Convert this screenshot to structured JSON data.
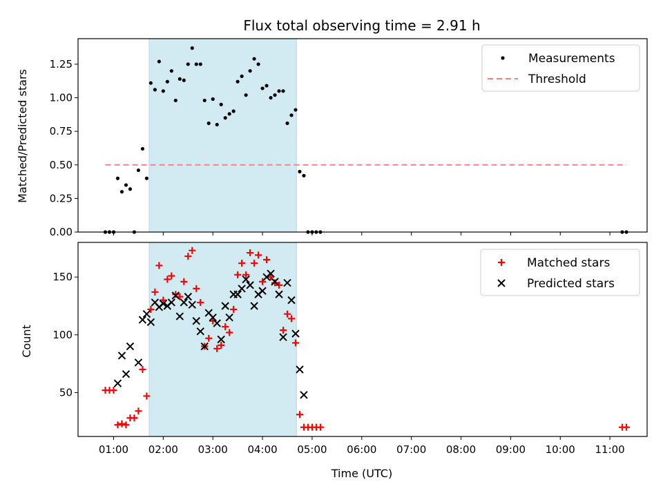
{
  "chart_data": [
    {
      "type": "scatter",
      "title": "Flux total observing time = 2.91 h",
      "ylabel": "Matched/Predicted stars",
      "xlabel": "",
      "xlim": [
        "00:17",
        "11:45"
      ],
      "ylim": [
        0,
        1.44
      ],
      "yticks": [
        "0.00",
        "0.25",
        "0.50",
        "0.75",
        "1.00",
        "1.25"
      ],
      "shaded_region": [
        "01:43",
        "04:41"
      ],
      "shade_color": "#add8e6",
      "legend_position": "upper right",
      "series": [
        {
          "name": "Measurements",
          "marker": "dot",
          "color": "#000000",
          "points": [
            [
              "00:50",
              0
            ],
            [
              "00:55",
              0
            ],
            [
              "01:00",
              0
            ],
            [
              "01:05",
              0.4
            ],
            [
              "01:10",
              0.3
            ],
            [
              "01:15",
              0.35
            ],
            [
              "01:20",
              0.32
            ],
            [
              "01:25",
              0
            ],
            [
              "01:30",
              0.46
            ],
            [
              "01:35",
              0.62
            ],
            [
              "01:40",
              0.4
            ],
            [
              "01:45",
              1.11
            ],
            [
              "01:50",
              1.06
            ],
            [
              "01:55",
              1.27
            ],
            [
              "02:00",
              1.05
            ],
            [
              "02:05",
              1.12
            ],
            [
              "02:10",
              1.2
            ],
            [
              "02:15",
              0.98
            ],
            [
              "02:20",
              1.14
            ],
            [
              "02:25",
              1.13
            ],
            [
              "02:30",
              1.25
            ],
            [
              "02:35",
              1.37
            ],
            [
              "02:40",
              1.25
            ],
            [
              "02:45",
              1.25
            ],
            [
              "02:50",
              0.98
            ],
            [
              "02:55",
              0.81
            ],
            [
              "03:00",
              0.99
            ],
            [
              "03:05",
              0.8
            ],
            [
              "03:10",
              0.95
            ],
            [
              "03:15",
              0.85
            ],
            [
              "03:20",
              0.88
            ],
            [
              "03:25",
              0.9
            ],
            [
              "03:30",
              1.12
            ],
            [
              "03:35",
              1.16
            ],
            [
              "03:40",
              1.02
            ],
            [
              "03:45",
              1.2
            ],
            [
              "03:50",
              1.29
            ],
            [
              "03:55",
              1.25
            ],
            [
              "04:00",
              1.07
            ],
            [
              "04:05",
              1.09
            ],
            [
              "04:10",
              1.0
            ],
            [
              "04:15",
              1.02
            ],
            [
              "04:20",
              1.05
            ],
            [
              "04:25",
              1.05
            ],
            [
              "04:30",
              0.81
            ],
            [
              "04:35",
              0.87
            ],
            [
              "04:40",
              0.91
            ],
            [
              "04:45",
              0.45
            ],
            [
              "04:50",
              0.42
            ],
            [
              "04:55",
              0
            ],
            [
              "05:00",
              0
            ],
            [
              "05:05",
              0
            ],
            [
              "05:10",
              0
            ],
            [
              "11:15",
              0
            ],
            [
              "11:20",
              0
            ]
          ]
        },
        {
          "name": "Threshold",
          "style": "dashed-line",
          "color": "#ff7f7f",
          "points": [
            [
              "00:50",
              0.5
            ],
            [
              "11:20",
              0.5
            ]
          ]
        }
      ]
    },
    {
      "type": "scatter",
      "title": "",
      "ylabel": "Count",
      "xlabel": "Time (UTC)",
      "xlim": [
        "00:17",
        "11:45"
      ],
      "ylim": [
        12,
        180
      ],
      "yticks": [
        "50",
        "100",
        "150"
      ],
      "xticks": [
        "01:00",
        "02:00",
        "03:00",
        "04:00",
        "05:00",
        "06:00",
        "07:00",
        "08:00",
        "09:00",
        "10:00",
        "11:00"
      ],
      "shaded_region": [
        "01:43",
        "04:41"
      ],
      "shade_color": "#add8e6",
      "legend_position": "upper right",
      "series": [
        {
          "name": "Matched stars",
          "marker": "plus",
          "color": "#ff0000",
          "points": [
            [
              "00:50",
              52
            ],
            [
              "00:55",
              52
            ],
            [
              "01:00",
              52
            ],
            [
              "01:05",
              22
            ],
            [
              "01:10",
              23
            ],
            [
              "01:15",
              22
            ],
            [
              "01:20",
              28
            ],
            [
              "01:25",
              28
            ],
            [
              "01:30",
              34
            ],
            [
              "01:35",
              70
            ],
            [
              "01:40",
              47
            ],
            [
              "01:45",
              122
            ],
            [
              "01:50",
              137
            ],
            [
              "01:55",
              160
            ],
            [
              "02:00",
              130
            ],
            [
              "02:05",
              148
            ],
            [
              "02:10",
              151
            ],
            [
              "02:15",
              135
            ],
            [
              "02:20",
              133
            ],
            [
              "02:25",
              146
            ],
            [
              "02:30",
              168
            ],
            [
              "02:35",
              173
            ],
            [
              "02:40",
              140
            ],
            [
              "02:45",
              128
            ],
            [
              "02:50",
              90
            ],
            [
              "02:55",
              97
            ],
            [
              "03:00",
              112
            ],
            [
              "03:05",
              88
            ],
            [
              "03:10",
              91
            ],
            [
              "03:15",
              107
            ],
            [
              "03:20",
              102
            ],
            [
              "03:25",
              122
            ],
            [
              "03:30",
              152
            ],
            [
              "03:35",
              162
            ],
            [
              "03:40",
              152
            ],
            [
              "03:45",
              171
            ],
            [
              "03:50",
              162
            ],
            [
              "03:55",
              169
            ],
            [
              "04:00",
              146
            ],
            [
              "04:05",
              165
            ],
            [
              "04:10",
              150
            ],
            [
              "04:15",
              145
            ],
            [
              "04:20",
              143
            ],
            [
              "04:25",
              104
            ],
            [
              "04:30",
              118
            ],
            [
              "04:35",
              114
            ],
            [
              "04:40",
              93
            ],
            [
              "04:45",
              31
            ],
            [
              "04:50",
              20
            ],
            [
              "04:55",
              20
            ],
            [
              "05:00",
              20
            ],
            [
              "05:05",
              20
            ],
            [
              "05:10",
              20
            ],
            [
              "11:15",
              20
            ],
            [
              "11:20",
              20
            ]
          ]
        },
        {
          "name": "Predicted stars",
          "marker": "x",
          "color": "#000000",
          "points": [
            [
              "01:05",
              58
            ],
            [
              "01:10",
              82
            ],
            [
              "01:15",
              66
            ],
            [
              "01:20",
              90
            ],
            [
              "01:30",
              76
            ],
            [
              "01:35",
              113
            ],
            [
              "01:40",
              118
            ],
            [
              "01:45",
              111
            ],
            [
              "01:50",
              128
            ],
            [
              "01:55",
              124
            ],
            [
              "02:00",
              127
            ],
            [
              "02:05",
              125
            ],
            [
              "02:10",
              128
            ],
            [
              "02:15",
              134
            ],
            [
              "02:20",
              116
            ],
            [
              "02:25",
              128
            ],
            [
              "02:30",
              133
            ],
            [
              "02:35",
              126
            ],
            [
              "02:40",
              112
            ],
            [
              "02:45",
              103
            ],
            [
              "02:50",
              90
            ],
            [
              "02:55",
              119
            ],
            [
              "03:00",
              115
            ],
            [
              "03:05",
              110
            ],
            [
              "03:10",
              96
            ],
            [
              "03:15",
              125
            ],
            [
              "03:20",
              115
            ],
            [
              "03:25",
              135
            ],
            [
              "03:30",
              135
            ],
            [
              "03:35",
              140
            ],
            [
              "03:40",
              148
            ],
            [
              "03:45",
              143
            ],
            [
              "03:50",
              125
            ],
            [
              "03:55",
              135
            ],
            [
              "04:00",
              138
            ],
            [
              "04:05",
              150
            ],
            [
              "04:10",
              153
            ],
            [
              "04:15",
              146
            ],
            [
              "04:20",
              135
            ],
            [
              "04:25",
              98
            ],
            [
              "04:30",
              145
            ],
            [
              "04:35",
              130
            ],
            [
              "04:40",
              101
            ],
            [
              "04:45",
              70
            ],
            [
              "04:50",
              48
            ]
          ]
        }
      ]
    }
  ]
}
